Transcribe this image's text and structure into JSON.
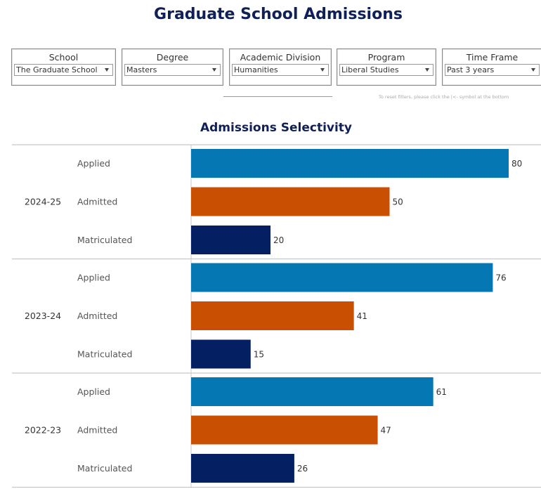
{
  "page": {
    "title": "Graduate School Admissions",
    "reset_note": "To reset filters, please click the |<- symbol at the bottom"
  },
  "filters": [
    {
      "label": "School",
      "value": "The Graduate School"
    },
    {
      "label": "Degree",
      "value": "Masters"
    },
    {
      "label": "Academic Division",
      "value": "Humanities"
    },
    {
      "label": "Program",
      "value": "Liberal Studies"
    },
    {
      "label": "Time Frame",
      "value": "Past 3 years"
    }
  ],
  "chart_data": {
    "type": "bar",
    "orientation": "horizontal",
    "title": "Admissions Selectivity",
    "categories": [
      "Applied",
      "Admitted",
      "Matriculated"
    ],
    "groups": [
      {
        "year": "2024-25",
        "values": [
          80,
          50,
          20
        ]
      },
      {
        "year": "2023-24",
        "values": [
          76,
          41,
          15
        ]
      },
      {
        "year": "2022-23",
        "values": [
          61,
          47,
          26
        ]
      }
    ],
    "colors": {
      "Applied": "#0577b2",
      "Admitted": "#c94f02",
      "Matriculated": "#042063"
    },
    "xlim": [
      0,
      80
    ],
    "grid": false
  }
}
